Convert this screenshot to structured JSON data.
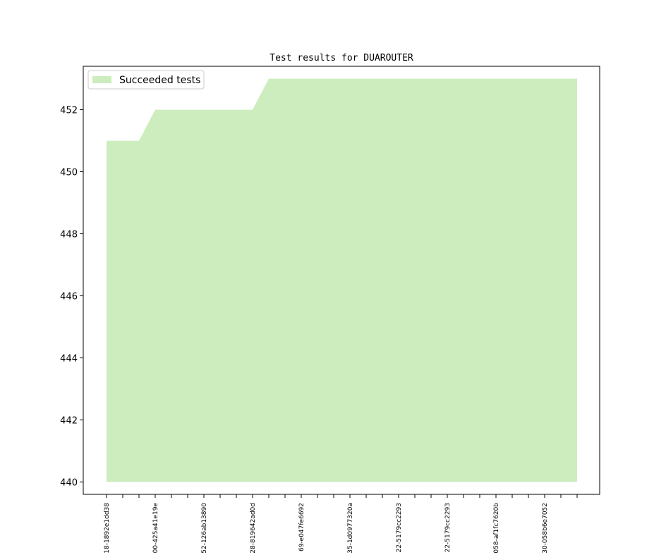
{
  "chart_data": {
    "type": "area",
    "title": "Test results for DUAROUTER",
    "xlabel": "",
    "ylabel": "",
    "ylim": [
      439.6,
      453.4
    ],
    "yticks": [
      440,
      442,
      444,
      446,
      448,
      450,
      452
    ],
    "legend": {
      "position": "top-left"
    },
    "grid": false,
    "x_tick_labels": [
      "18-1892e1dd38",
      "",
      "",
      "00-425a41e19e",
      "",
      "",
      "52-126ab13890",
      "",
      "",
      "28-819642ad0d",
      "",
      "",
      "69-e047fe6692",
      "",
      "",
      "35-1d0977320a",
      "",
      "",
      "22-5179cc2293",
      "",
      "",
      "22-5179cc2293",
      "",
      "",
      "058-af1fc7620b",
      "",
      "",
      "30-058b6e7052",
      "",
      ""
    ],
    "series": [
      {
        "name": "Succeeded tests",
        "color": "#cdedbe",
        "baseline": 440,
        "values": [
          451,
          451,
          451,
          452,
          452,
          452,
          452,
          452,
          452,
          452,
          453,
          453,
          453,
          453,
          453,
          453,
          453,
          453,
          453,
          453,
          453,
          453,
          453,
          453,
          453,
          453,
          453,
          453,
          453,
          453
        ]
      }
    ]
  }
}
